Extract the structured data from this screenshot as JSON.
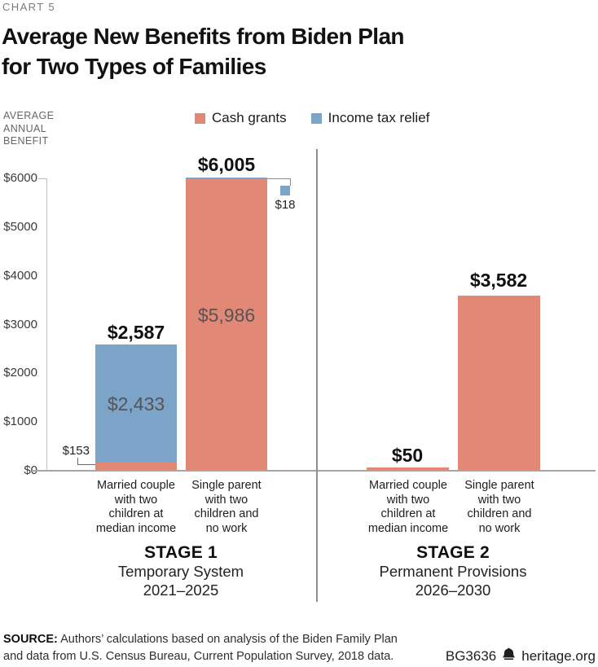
{
  "header": {
    "kicker": "CHART 5",
    "title_lines": [
      "Average New Benefits from Biden Plan",
      "for Two Types of Families"
    ]
  },
  "axis": {
    "label_lines": [
      "AVERAGE",
      "ANNUAL",
      "BENEFIT"
    ],
    "yticks": [
      "$6000",
      "$5000",
      "$4000",
      "$3000",
      "$2000",
      "$1000",
      "$0"
    ]
  },
  "legend": {
    "items": [
      {
        "label": "Cash grants",
        "color": "#E28877"
      },
      {
        "label": "Income tax relief",
        "color": "#7CA3C8"
      }
    ]
  },
  "chart_data": {
    "type": "bar",
    "title": "Average New Benefits from Biden Plan for Two Types of Families",
    "ylabel": "AVERAGE ANNUAL BENEFIT",
    "ylim": [
      0,
      6000
    ],
    "ytick_interval": 1000,
    "grid": false,
    "legend_position": "top",
    "series_colors": {
      "cash_grants": "#E28877",
      "income_tax_relief": "#7CA3C8"
    },
    "groups": [
      {
        "stage": "STAGE 1",
        "system": "Temporary System",
        "years": "2021–2025",
        "bars": [
          {
            "category": "Married couple with two children at median income",
            "category_lines": [
              "Married couple",
              "with two",
              "children at",
              "median income"
            ],
            "cash_grants": 153,
            "income_tax_relief": 2433,
            "total": 2587,
            "labels": {
              "total": "$2,587",
              "cash": "$153",
              "tax": "$2,433"
            }
          },
          {
            "category": "Single parent with two children and no work",
            "category_lines": [
              "Single parent",
              "with two",
              "children and",
              "no work"
            ],
            "cash_grants": 5986,
            "income_tax_relief": 18,
            "total": 6005,
            "labels": {
              "total": "$6,005",
              "cash": "$5,986",
              "tax": "$18"
            }
          }
        ]
      },
      {
        "stage": "STAGE 2",
        "system": "Permanent Provisions",
        "years": "2026–2030",
        "bars": [
          {
            "category": "Married couple with two children at median income",
            "category_lines": [
              "Married couple",
              "with two",
              "children at",
              "median income"
            ],
            "cash_grants": 50,
            "income_tax_relief": 0,
            "total": 50,
            "labels": {
              "total": "$50"
            }
          },
          {
            "category": "Single parent with two children and no work",
            "category_lines": [
              "Single parent",
              "with two",
              "children and",
              "no work"
            ],
            "cash_grants": 3582,
            "income_tax_relief": 0,
            "total": 3582,
            "labels": {
              "total": "$3,582"
            }
          }
        ]
      }
    ]
  },
  "footer": {
    "source_bold": "SOURCE:",
    "source_text": " Authors’ calculations based on analysis of the Biden Family Plan and data from U.S. Census Bureau, Current Population Survey, 2018 data.",
    "id": "BG3636",
    "site": "heritage.org",
    "bell_icon": "heritage-bell"
  }
}
